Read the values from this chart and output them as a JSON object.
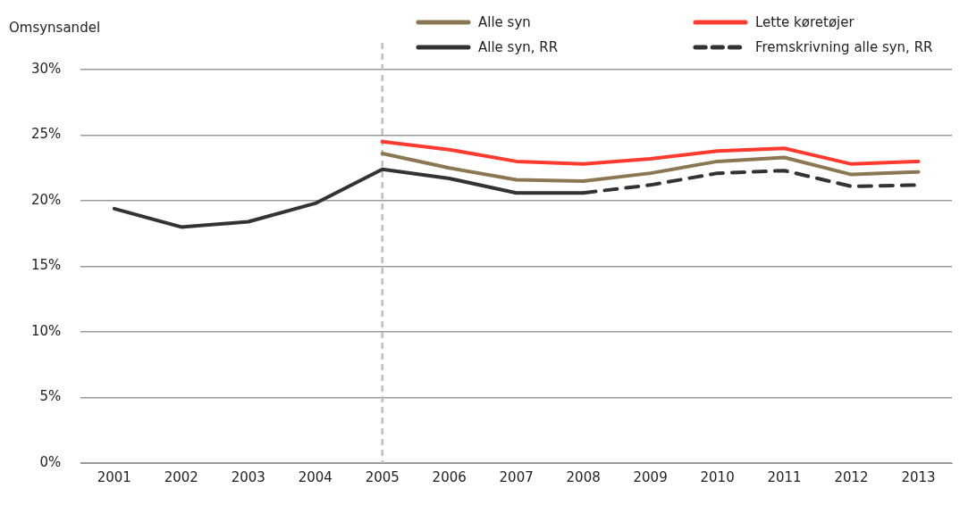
{
  "chart_data": {
    "type": "line",
    "ylabel": "Omsynsandel",
    "categories": [
      "2001",
      "2002",
      "2003",
      "2004",
      "2005",
      "2006",
      "2007",
      "2008",
      "2009",
      "2010",
      "2011",
      "2012",
      "2013"
    ],
    "series": [
      {
        "name": "Alle syn",
        "color": "#8b7752",
        "values": [
          null,
          null,
          null,
          null,
          23.6,
          22.5,
          21.6,
          21.5,
          22.1,
          23.0,
          23.3,
          22.0,
          22.2
        ]
      },
      {
        "name": "Lette køretøjer",
        "color": "#ff3b30",
        "values": [
          null,
          null,
          null,
          null,
          24.5,
          23.9,
          23.0,
          22.8,
          23.2,
          23.8,
          24.0,
          22.8,
          23.0
        ]
      },
      {
        "name": "Alle syn, RR",
        "color": "#333333",
        "values": [
          19.4,
          18.0,
          18.4,
          19.8,
          22.4,
          21.7,
          20.6,
          20.6,
          null,
          null,
          null,
          null,
          null
        ]
      },
      {
        "name": "Fremskrivning alle syn, RR",
        "color": "#333333",
        "line_style": "dashed",
        "values": [
          null,
          null,
          null,
          null,
          null,
          null,
          null,
          20.6,
          21.2,
          22.1,
          22.3,
          21.1,
          21.2
        ]
      }
    ],
    "ylim": [
      0,
      30
    ],
    "yticks": [
      {
        "value": 0,
        "label": "0%"
      },
      {
        "value": 5,
        "label": "5%"
      },
      {
        "value": 10,
        "label": "10%"
      },
      {
        "value": 15,
        "label": "15%"
      },
      {
        "value": 20,
        "label": "20%"
      },
      {
        "value": 25,
        "label": "25%"
      },
      {
        "value": 30,
        "label": "30%"
      }
    ],
    "grid": "y",
    "legend": "top right",
    "marker": "none",
    "line_style": "solid",
    "ref_lines": [
      {
        "axis": "x",
        "value": "2005",
        "color": "#bfbfbf",
        "line_style": "dashed"
      }
    ]
  }
}
